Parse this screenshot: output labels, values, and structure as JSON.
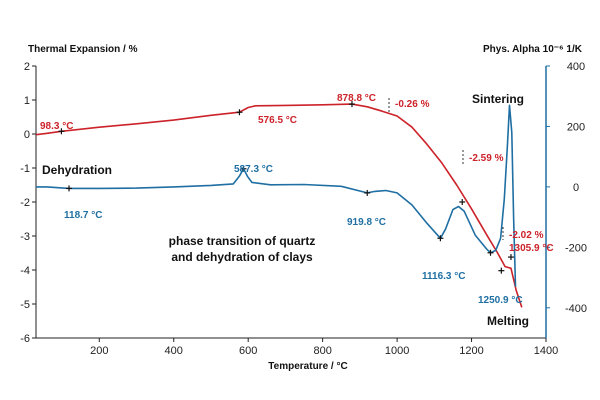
{
  "chart_data": {
    "type": "line",
    "xlabel": "Temperature / °C",
    "ylabel_left": "Thermal Expansion / %",
    "ylabel_right": "Phys. Alpha 10⁻⁶ 1/K",
    "x_ticks": [
      "200",
      "400",
      "600",
      "800",
      "1000",
      "1200",
      "1400"
    ],
    "y_left_ticks": [
      "2",
      "1",
      "0",
      "-1",
      "-2",
      "-3",
      "-4",
      "-5",
      "-6"
    ],
    "y_right_ticks": [
      "400",
      "200",
      "0",
      "-200",
      "-400"
    ],
    "xlim": [
      30,
      1400
    ],
    "ylim_left": [
      -6,
      2
    ],
    "ylim_right": [
      -500,
      400
    ],
    "grid": false,
    "colors": {
      "expansion": "#cc2229",
      "alpha": "#1f6fa3",
      "axis_right": "#1f6fa3"
    },
    "series": [
      {
        "axis": "left",
        "points": [
          [
            30,
            -0.02
          ],
          [
            60,
            0.02
          ],
          [
            98.3,
            0.08
          ],
          [
            200,
            0.2
          ],
          [
            300,
            0.3
          ],
          [
            400,
            0.41
          ],
          [
            500,
            0.55
          ],
          [
            576.5,
            0.64
          ],
          [
            600,
            0.78
          ],
          [
            620,
            0.83
          ],
          [
            700,
            0.84
          ],
          [
            800,
            0.86
          ],
          [
            878.8,
            0.88
          ],
          [
            920,
            0.8
          ],
          [
            960,
            0.67
          ],
          [
            1000,
            0.53
          ],
          [
            1040,
            0.2
          ],
          [
            1080,
            -0.3
          ],
          [
            1120,
            -0.85
          ],
          [
            1160,
            -1.5
          ],
          [
            1200,
            -2.2
          ],
          [
            1240,
            -2.95
          ],
          [
            1270,
            -3.5
          ],
          [
            1290,
            -3.9
          ],
          [
            1305.9,
            -3.95
          ],
          [
            1320,
            -4.6
          ],
          [
            1335,
            -5.1
          ]
        ]
      },
      {
        "axis": "right",
        "points": [
          [
            30,
            0
          ],
          [
            60,
            0
          ],
          [
            118.7,
            -5
          ],
          [
            200,
            -5
          ],
          [
            300,
            -4
          ],
          [
            400,
            0
          ],
          [
            500,
            5
          ],
          [
            560,
            10
          ],
          [
            576,
            35
          ],
          [
            587.3,
            60
          ],
          [
            598,
            35
          ],
          [
            610,
            15
          ],
          [
            660,
            7
          ],
          [
            750,
            8
          ],
          [
            850,
            2
          ],
          [
            919.8,
            -20
          ],
          [
            940,
            -15
          ],
          [
            970,
            -12
          ],
          [
            1000,
            -20
          ],
          [
            1040,
            -60
          ],
          [
            1080,
            -120
          ],
          [
            1116.3,
            -170
          ],
          [
            1130,
            -140
          ],
          [
            1150,
            -75
          ],
          [
            1165,
            -65
          ],
          [
            1180,
            -80
          ],
          [
            1210,
            -160
          ],
          [
            1240,
            -205
          ],
          [
            1250.9,
            -218
          ],
          [
            1265,
            -210
          ],
          [
            1278,
            -170
          ],
          [
            1288,
            -40
          ],
          [
            1296,
            130
          ],
          [
            1302,
            270
          ],
          [
            1308,
            180
          ],
          [
            1313,
            -100
          ],
          [
            1318,
            -330
          ]
        ]
      }
    ],
    "markers": [
      {
        "axis": "left",
        "x": 98.3,
        "y": 0.08
      },
      {
        "axis": "left",
        "x": 576.5,
        "y": 0.64
      },
      {
        "axis": "left",
        "x": 878.8,
        "y": 0.88
      },
      {
        "axis": "left",
        "x": 1175,
        "y": -2.0
      },
      {
        "axis": "left",
        "x": 1280,
        "y": -4.02
      },
      {
        "axis": "left",
        "x": 1305.9,
        "y": -3.62
      },
      {
        "axis": "right",
        "x": 118.7,
        "y": -5
      },
      {
        "axis": "right",
        "x": 587.3,
        "y": 60
      },
      {
        "axis": "right",
        "x": 919.8,
        "y": -20
      },
      {
        "axis": "right",
        "x": 1116.3,
        "y": -170
      },
      {
        "axis": "right",
        "x": 1250.9,
        "y": -218
      }
    ],
    "point_labels": [
      {
        "text": "98.3 °C",
        "series": "expansion"
      },
      {
        "text": "576.5 °C",
        "series": "expansion"
      },
      {
        "text": "878.8 °C",
        "series": "expansion"
      },
      {
        "text": "-0.26 %",
        "series": "expansion"
      },
      {
        "text": "-2.59 %",
        "series": "expansion"
      },
      {
        "text": "-2.02 %",
        "series": "expansion"
      },
      {
        "text": "1305.9 °C",
        "series": "expansion"
      },
      {
        "text": "118.7 °C",
        "series": "alpha"
      },
      {
        "text": "587.3 °C",
        "series": "alpha"
      },
      {
        "text": "919.8 °C",
        "series": "alpha"
      },
      {
        "text": "1116.3 °C",
        "series": "alpha"
      },
      {
        "text": "1250.9 °C",
        "series": "alpha"
      }
    ],
    "annotations": {
      "dehydration": "Dehydration",
      "phase_line1": "phase transition of quartz",
      "phase_line2": "and dehydration of clays",
      "sintering": "Sintering",
      "melting": "Melting"
    }
  }
}
